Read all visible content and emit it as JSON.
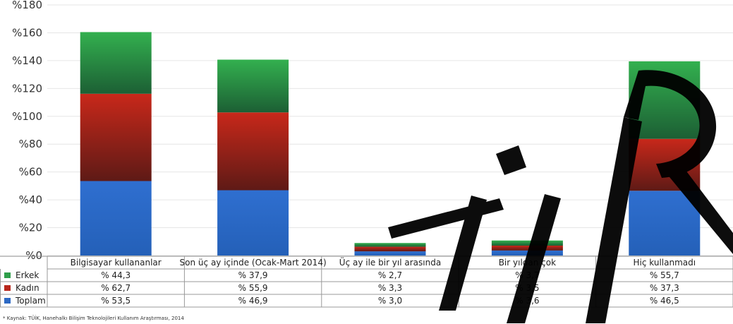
{
  "chart_data": {
    "type": "bar",
    "stacked": true,
    "categories": [
      "Bilgisayar kullananlar",
      "Son üç ay içinde (Ocak-Mart 2014)",
      "Üç ay ile bir yıl arasında",
      "Bir yıldan çok",
      "Hiç kullanmadı"
    ],
    "series": [
      {
        "name": "Toplam",
        "values": [
          53.5,
          46.9,
          3.0,
          3.6,
          46.5
        ],
        "color": "#2d69c4",
        "labels": [
          "% 53,5",
          "% 46,9",
          "% 3,0",
          "% 3,6",
          "% 46,5"
        ]
      },
      {
        "name": "Kadın",
        "values": [
          62.7,
          55.9,
          3.3,
          3.5,
          37.3
        ],
        "color": "#b8261b",
        "labels": [
          "% 62,7",
          "% 55,9",
          "% 3,3",
          "% 3,5",
          "% 37,3"
        ]
      },
      {
        "name": "Erkek",
        "values": [
          44.3,
          37.9,
          2.7,
          3.7,
          55.7
        ],
        "color": "#2f9e4a",
        "labels": [
          "% 44,3",
          "% 37,9",
          "% 2,7",
          "% 3,7",
          "% 55,7"
        ]
      }
    ],
    "table_rows": [
      "Erkek",
      "Kadın",
      "Toplam"
    ],
    "ylim": [
      0,
      180
    ],
    "yticks": [
      0,
      20,
      40,
      60,
      80,
      100,
      120,
      140,
      160,
      180
    ],
    "ytick_labels": [
      "%0",
      "%20",
      "%40",
      "%60",
      "%80",
      "%100",
      "%120",
      "%140",
      "%160",
      "%180"
    ],
    "grid": true,
    "legend": "data-table-left"
  },
  "source_note": "* Kaynak: TÜİK, Hanehalkı Bilişim Teknolojileri Kullanım Araştırması, 2014",
  "watermark_text": "TİR"
}
